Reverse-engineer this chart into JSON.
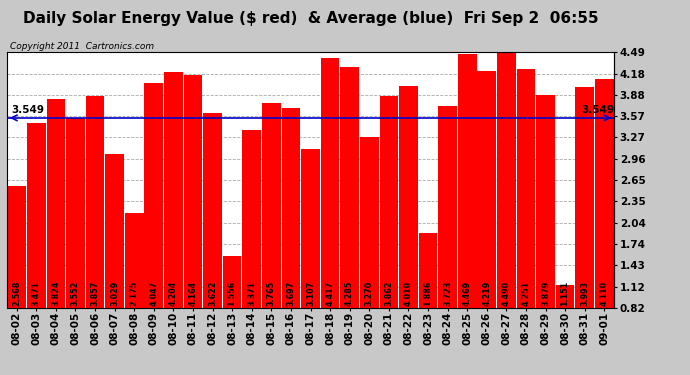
{
  "title": "Daily Solar Energy Value ($ red)  & Average (blue)  Fri Sep 2  06:55",
  "copyright": "Copyright 2011  Cartronics.com",
  "categories": [
    "08-02",
    "08-03",
    "08-04",
    "08-05",
    "08-06",
    "08-07",
    "08-08",
    "08-09",
    "08-10",
    "08-11",
    "08-12",
    "08-13",
    "08-14",
    "08-15",
    "08-16",
    "08-17",
    "08-18",
    "08-19",
    "08-20",
    "08-21",
    "08-22",
    "08-23",
    "08-24",
    "08-25",
    "08-26",
    "08-27",
    "08-28",
    "08-29",
    "08-30",
    "08-31",
    "09-01"
  ],
  "values": [
    2.568,
    3.471,
    3.824,
    3.552,
    3.857,
    3.029,
    2.175,
    4.047,
    4.204,
    4.164,
    3.622,
    1.556,
    3.371,
    3.765,
    3.697,
    3.107,
    4.417,
    4.285,
    3.27,
    3.862,
    4.01,
    1.886,
    3.723,
    4.469,
    4.219,
    4.49,
    4.251,
    3.879,
    1.151,
    3.993,
    4.11
  ],
  "average": 3.549,
  "average_label": "3.549",
  "bar_color": "#ff0000",
  "avg_line_color": "#0000cc",
  "background_color": "#c8c8c8",
  "plot_bg_color": "#ffffff",
  "grid_color": "#aaaaaa",
  "yticks_right": [
    0.82,
    1.12,
    1.43,
    1.74,
    2.04,
    2.35,
    2.65,
    2.96,
    3.27,
    3.57,
    3.88,
    4.18,
    4.49
  ],
  "ymin": 0.82,
  "ymax": 4.49,
  "title_fontsize": 11,
  "copyright_fontsize": 6.5,
  "bar_label_fontsize": 5.8,
  "tick_fontsize": 7.5,
  "avg_label_fontsize": 7.5
}
